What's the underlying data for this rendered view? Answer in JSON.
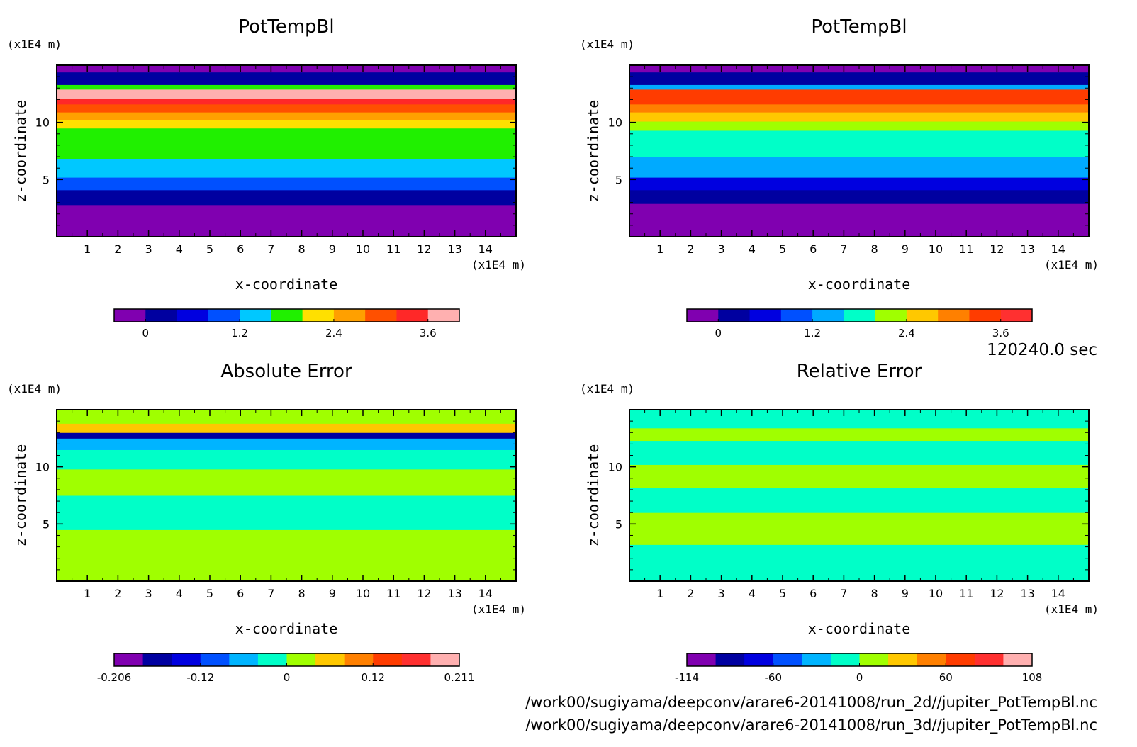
{
  "time_label": "120240.0 sec",
  "footer": [
    "/work00/sugiyama/deepconv/arare6-20141008/run_2d//jupiter_PotTempBl.nc",
    "/work00/sugiyama/deepconv/arare6-20141008/run_3d//jupiter_PotTempBl.nc"
  ],
  "chart_data": [
    {
      "type": "heatmap",
      "title": "PotTempBl",
      "xlabel": "x-coordinate",
      "ylabel": "z-coordinate",
      "x_unit": "(x1E4 m)",
      "y_unit": "(x1E4 m)",
      "xlim": [
        0,
        15
      ],
      "ylim": [
        0,
        15
      ],
      "x_ticks": [
        "1",
        "2",
        "3",
        "4",
        "5",
        "6",
        "7",
        "8",
        "9",
        "10",
        "11",
        "12",
        "13",
        "14"
      ],
      "y_ticks": [
        "5",
        "10"
      ],
      "colorbar": {
        "colors": [
          "#8000b0",
          "#0000a0",
          "#0000e0",
          "#0050ff",
          "#00c8ff",
          "#20f000",
          "#ffe000",
          "#ffa000",
          "#ff5000",
          "#ff2828",
          "#ffb0b0"
        ],
        "tick_labels": [
          "0",
          "1.2",
          "2.4",
          "3.6"
        ]
      },
      "bands": [
        {
          "z_from": 0,
          "z_to": 2.8,
          "color": "#8000b0"
        },
        {
          "z_from": 2.8,
          "z_to": 3.3,
          "color": "#0000a0"
        },
        {
          "z_from": 3.3,
          "z_to": 4.1,
          "color": "#0000a0"
        },
        {
          "z_from": 4.1,
          "z_to": 5.2,
          "color": "#0050ff"
        },
        {
          "z_from": 5.2,
          "z_to": 6.8,
          "color": "#00c8ff"
        },
        {
          "z_from": 6.8,
          "z_to": 9.5,
          "color": "#20f000"
        },
        {
          "z_from": 9.5,
          "z_to": 10.2,
          "color": "#ffe000"
        },
        {
          "z_from": 10.2,
          "z_to": 10.9,
          "color": "#ffa000"
        },
        {
          "z_from": 10.9,
          "z_to": 11.6,
          "color": "#ff5000"
        },
        {
          "z_from": 11.6,
          "z_to": 12.1,
          "color": "#ff2828"
        },
        {
          "z_from": 12.1,
          "z_to": 12.9,
          "color": "#ffb0b0"
        },
        {
          "z_from": 12.9,
          "z_to": 13.3,
          "color": "#20f000"
        },
        {
          "z_from": 13.3,
          "z_to": 14.4,
          "color": "#0000a0"
        },
        {
          "z_from": 14.4,
          "z_to": 15,
          "color": "#8000b0"
        }
      ]
    },
    {
      "type": "heatmap",
      "title": "PotTempBl",
      "xlabel": "x-coordinate",
      "ylabel": "z-coordinate",
      "x_unit": "(x1E4 m)",
      "y_unit": "(x1E4 m)",
      "xlim": [
        0,
        15
      ],
      "ylim": [
        0,
        15
      ],
      "x_ticks": [
        "1",
        "2",
        "3",
        "4",
        "5",
        "6",
        "7",
        "8",
        "9",
        "10",
        "11",
        "12",
        "13",
        "14"
      ],
      "y_ticks": [
        "5",
        "10"
      ],
      "colorbar": {
        "colors": [
          "#8000b0",
          "#0000a0",
          "#0000e0",
          "#0050ff",
          "#00aaff",
          "#00ffc8",
          "#a0ff00",
          "#ffc800",
          "#ff8000",
          "#ff3c00",
          "#ff3030"
        ],
        "tick_labels": [
          "0",
          "1.2",
          "2.4",
          "3.6"
        ]
      },
      "bands": [
        {
          "z_from": 0,
          "z_to": 2.9,
          "color": "#8000b0"
        },
        {
          "z_from": 2.9,
          "z_to": 4.1,
          "color": "#0000a0"
        },
        {
          "z_from": 4.1,
          "z_to": 5.2,
          "color": "#0000e0"
        },
        {
          "z_from": 5.2,
          "z_to": 7.0,
          "color": "#00aaff"
        },
        {
          "z_from": 7.0,
          "z_to": 9.3,
          "color": "#00ffc8"
        },
        {
          "z_from": 9.3,
          "z_to": 10.1,
          "color": "#a0ff00"
        },
        {
          "z_from": 10.1,
          "z_to": 10.9,
          "color": "#ffc800"
        },
        {
          "z_from": 10.9,
          "z_to": 11.6,
          "color": "#ff8000"
        },
        {
          "z_from": 11.6,
          "z_to": 12.9,
          "color": "#ff3c00"
        },
        {
          "z_from": 12.9,
          "z_to": 13.3,
          "color": "#00aaff"
        },
        {
          "z_from": 13.3,
          "z_to": 14.4,
          "color": "#0000a0"
        },
        {
          "z_from": 14.4,
          "z_to": 15,
          "color": "#8000b0"
        }
      ]
    },
    {
      "type": "heatmap",
      "title": "Absolute Error",
      "xlabel": "x-coordinate",
      "ylabel": "z-coordinate",
      "x_unit": "(x1E4 m)",
      "y_unit": "(x1E4 m)",
      "xlim": [
        0,
        15
      ],
      "ylim": [
        0,
        15
      ],
      "x_ticks": [
        "1",
        "2",
        "3",
        "4",
        "5",
        "6",
        "7",
        "8",
        "9",
        "10",
        "11",
        "12",
        "13",
        "14"
      ],
      "y_ticks": [
        "5",
        "10"
      ],
      "colorbar": {
        "colors": [
          "#8000b0",
          "#0000a0",
          "#0000e0",
          "#0050ff",
          "#00b4ff",
          "#00ffc8",
          "#a0ff00",
          "#ffc800",
          "#ff8000",
          "#ff3c00",
          "#ff3030",
          "#ffb0b0"
        ],
        "tick_labels": [
          "-0.206",
          "-0.12",
          "0",
          "0.12",
          "0.211"
        ]
      },
      "bands": [
        {
          "z_from": 0,
          "z_to": 4.5,
          "color": "#a0ff00"
        },
        {
          "z_from": 4.5,
          "z_to": 7.5,
          "color": "#00ffc8"
        },
        {
          "z_from": 7.5,
          "z_to": 9.8,
          "color": "#a0ff00"
        },
        {
          "z_from": 9.8,
          "z_to": 11.5,
          "color": "#00ffc8"
        },
        {
          "z_from": 11.5,
          "z_to": 12.5,
          "color": "#00b4ff"
        },
        {
          "z_from": 12.5,
          "z_to": 13.0,
          "color": "#0000a0"
        },
        {
          "z_from": 13.0,
          "z_to": 13.8,
          "color": "#ffc800"
        },
        {
          "z_from": 13.8,
          "z_to": 15,
          "color": "#a0ff00"
        }
      ]
    },
    {
      "type": "heatmap",
      "title": "Relative Error",
      "xlabel": "x-coordinate",
      "ylabel": "z-coordinate",
      "x_unit": "(x1E4 m)",
      "y_unit": "(x1E4 m)",
      "xlim": [
        0,
        15
      ],
      "ylim": [
        0,
        15
      ],
      "x_ticks": [
        "1",
        "2",
        "3",
        "4",
        "5",
        "6",
        "7",
        "8",
        "9",
        "10",
        "11",
        "12",
        "13",
        "14"
      ],
      "y_ticks": [
        "5",
        "10"
      ],
      "colorbar": {
        "colors": [
          "#8000b0",
          "#0000a0",
          "#0000e0",
          "#0050ff",
          "#00b4ff",
          "#00ffc8",
          "#a0ff00",
          "#ffc800",
          "#ff8000",
          "#ff3c00",
          "#ff3030",
          "#ffb0b0"
        ],
        "tick_labels": [
          "-114",
          "-60",
          "0",
          "60",
          "108"
        ]
      },
      "bands": [
        {
          "z_from": 0,
          "z_to": 3.2,
          "color": "#00ffc8"
        },
        {
          "z_from": 3.2,
          "z_to": 6.0,
          "color": "#a0ff00"
        },
        {
          "z_from": 6.0,
          "z_to": 8.2,
          "color": "#00ffc8"
        },
        {
          "z_from": 8.2,
          "z_to": 10.2,
          "color": "#a0ff00"
        },
        {
          "z_from": 10.2,
          "z_to": 12.3,
          "color": "#00ffc8"
        },
        {
          "z_from": 12.3,
          "z_to": 13.4,
          "color": "#a0ff00"
        },
        {
          "z_from": 13.4,
          "z_to": 15,
          "color": "#00ffc8"
        }
      ]
    }
  ]
}
